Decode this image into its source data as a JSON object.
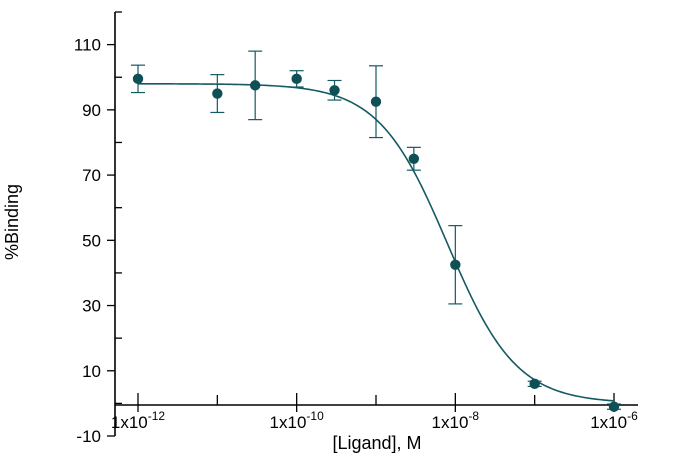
{
  "chart_data": {
    "type": "scatter",
    "xlabel": "[Ligand], M",
    "ylabel": "%Binding",
    "xscale": "log",
    "xlim": [
      1e-12,
      1e-06
    ],
    "ylim": [
      -10,
      120
    ],
    "yticks": [
      -10,
      10,
      30,
      50,
      70,
      90,
      110
    ],
    "ytick_labels": [
      "-10",
      "10",
      "30",
      "50",
      "70",
      "90",
      "110"
    ],
    "xtick_labels": [
      {
        "value": 1e-12,
        "base": "1x10",
        "exp": "-12"
      },
      {
        "value": 1e-10,
        "base": "1x10",
        "exp": "-10"
      },
      {
        "value": 1e-08,
        "base": "1x10",
        "exp": "-8"
      },
      {
        "value": 1e-06,
        "base": "1x10",
        "exp": "-6"
      }
    ],
    "grid": false,
    "series": [
      {
        "points": [
          {
            "x": 1e-12,
            "y": 99.5,
            "err": 4.2
          },
          {
            "x": 1e-11,
            "y": 95,
            "err": 5.8
          },
          {
            "x": 3e-11,
            "y": 97.5,
            "err": 10.5
          },
          {
            "x": 1e-10,
            "y": 99.5,
            "err": 2.5
          },
          {
            "x": 3e-10,
            "y": 96,
            "err": 3.0
          },
          {
            "x": 1e-09,
            "y": 92.5,
            "err": 11.0
          },
          {
            "x": 3e-09,
            "y": 75,
            "err": 3.5
          },
          {
            "x": 1e-08,
            "y": 42.5,
            "err": 12.0
          },
          {
            "x": 1e-07,
            "y": 6,
            "err": 0.8
          },
          {
            "x": 1e-06,
            "y": -1,
            "err": 0.8
          }
        ],
        "fit": {
          "type": "sigmoidal-dose-response",
          "top": 98,
          "bottom": 0,
          "log_ic50": -8.1,
          "hill_slope": -1
        }
      }
    ],
    "colors": {
      "series": "#0f4f56",
      "axis": "#000000"
    }
  }
}
